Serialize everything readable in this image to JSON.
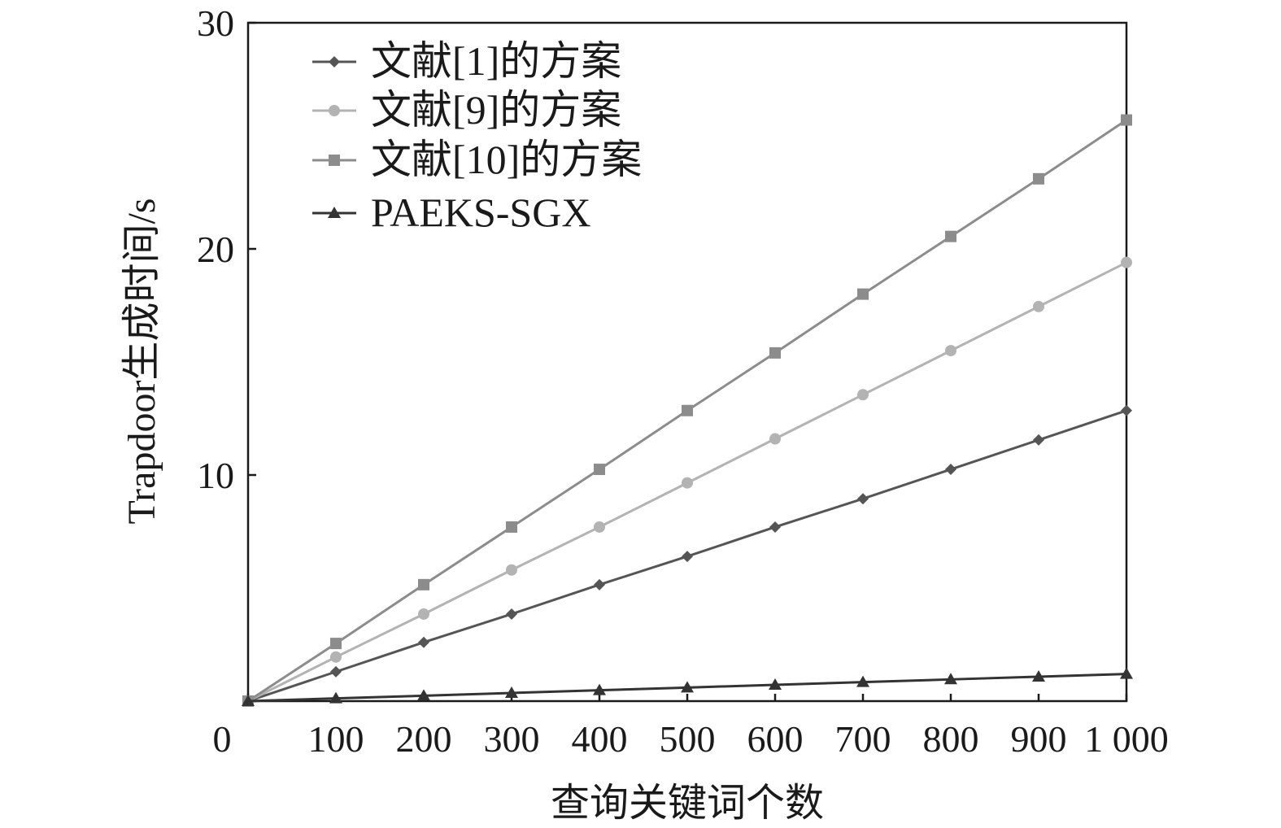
{
  "chart_data": {
    "type": "line",
    "xlabel": "查询关键词个数",
    "ylabel": "Trapdoor生成时间/s",
    "xlim": [
      0,
      1000
    ],
    "ylim": [
      0,
      30
    ],
    "x_ticks": [
      0,
      100,
      200,
      300,
      400,
      500,
      600,
      700,
      800,
      900,
      1000
    ],
    "x_tick_labels": [
      "0",
      "100",
      "200",
      "300",
      "400",
      "500",
      "600",
      "700",
      "800",
      "900",
      "1 000"
    ],
    "y_ticks": [
      0,
      10,
      20,
      30
    ],
    "y_tick_labels": [
      "",
      "10",
      "20",
      "30"
    ],
    "grid": false,
    "legend_position": "top-left",
    "series": [
      {
        "name": "文献[1]的方案",
        "marker": "diamond",
        "color": "#555555",
        "x": [
          0,
          100,
          200,
          300,
          400,
          500,
          600,
          700,
          800,
          900,
          1000
        ],
        "y": [
          0,
          1.3,
          2.6,
          3.85,
          5.15,
          6.4,
          7.7,
          8.95,
          10.25,
          11.55,
          12.85
        ]
      },
      {
        "name": "文献[9]的方案",
        "marker": "circle",
        "color": "#b3b3b3",
        "x": [
          0,
          100,
          200,
          300,
          400,
          500,
          600,
          700,
          800,
          900,
          1000
        ],
        "y": [
          0,
          1.95,
          3.85,
          5.8,
          7.7,
          9.65,
          11.6,
          13.55,
          15.5,
          17.45,
          19.4
        ]
      },
      {
        "name": "文献[10]的方案",
        "marker": "square",
        "color": "#8c8c8c",
        "x": [
          0,
          100,
          200,
          300,
          400,
          500,
          600,
          700,
          800,
          900,
          1000
        ],
        "y": [
          0,
          2.55,
          5.15,
          7.7,
          10.25,
          12.85,
          15.4,
          18.0,
          20.55,
          23.1,
          25.7
        ]
      },
      {
        "name": "PAEKS-SGX",
        "marker": "triangle",
        "color": "#333333",
        "x": [
          0,
          100,
          200,
          300,
          400,
          500,
          600,
          700,
          800,
          900,
          1000
        ],
        "y": [
          0,
          0.12,
          0.24,
          0.36,
          0.48,
          0.6,
          0.72,
          0.84,
          0.96,
          1.08,
          1.2
        ]
      }
    ]
  }
}
